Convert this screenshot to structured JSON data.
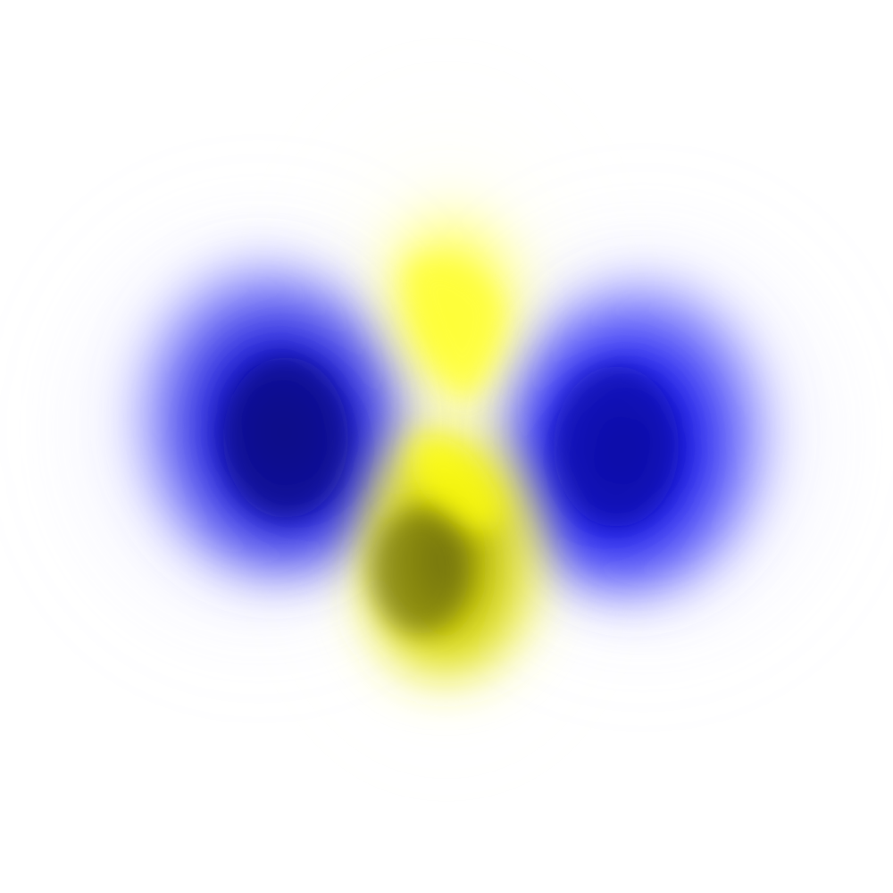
{
  "figure": {
    "description_visible_text": "",
    "background_color": "#ffffff",
    "lobes": [
      {
        "name": "left-blue-lobe",
        "phase": "negative",
        "color_light": "#3a3aff",
        "color_dark": "#0a0a8a"
      },
      {
        "name": "right-blue-lobe",
        "phase": "negative",
        "color_light": "#3a3aff",
        "color_dark": "#0a0a8a"
      },
      {
        "name": "upper-yellow-lobe",
        "phase": "positive",
        "color_light": "#ffff66",
        "color_dark": "#e6e600"
      },
      {
        "name": "lower-yellow-lobe",
        "phase": "positive",
        "color_light": "#ffff33",
        "color_dark": "#5a5a10"
      }
    ]
  }
}
